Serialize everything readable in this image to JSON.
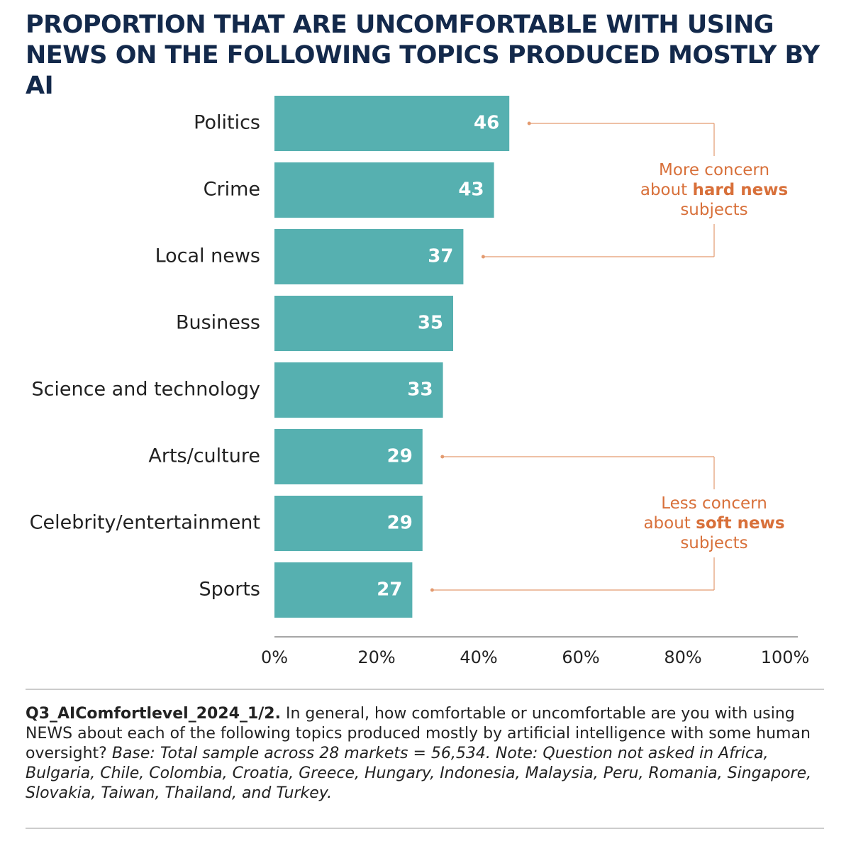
{
  "chart_data": {
    "type": "hbar",
    "title": "PROPORTION THAT ARE UNCOMFORTABLE WITH USING NEWS ON THE FOLLOWING TOPICS PRODUCED MOSTLY BY AI",
    "categories": [
      "Politics",
      "Crime",
      "Local news",
      "Business",
      "Science and technology",
      "Arts/culture",
      "Celebrity/entertainment",
      "Sports"
    ],
    "values": [
      46,
      43,
      37,
      35,
      33,
      29,
      29,
      27
    ],
    "color": "#56b0b0",
    "xlim": [
      0,
      100
    ],
    "xticks": [
      {
        "value": 0,
        "label": "0%"
      },
      {
        "value": 20,
        "label": "20%"
      },
      {
        "value": 40,
        "label": "40%"
      },
      {
        "value": 60,
        "label": "60%"
      },
      {
        "value": 80,
        "label": "80%"
      },
      {
        "value": 100,
        "label": "100%"
      }
    ],
    "annotations": [
      {
        "lines": [
          [
            {
              "text": "More concern",
              "bold": false
            }
          ],
          [
            {
              "text": "about ",
              "bold": false
            },
            {
              "text": "hard news",
              "bold": true
            }
          ],
          [
            {
              "text": "subjects",
              "bold": false
            }
          ]
        ]
      },
      {
        "lines": [
          [
            {
              "text": "Less concern",
              "bold": false
            }
          ],
          [
            {
              "text": "about ",
              "bold": false
            },
            {
              "text": "soft news",
              "bold": true
            }
          ],
          [
            {
              "text": "subjects",
              "bold": false
            }
          ]
        ]
      }
    ],
    "footnote": {
      "code": "Q3_AIComfortlevel_2024_1/2.",
      "question": " In general, how comfortable or uncomfortable are you with using NEWS about each of the following topics produced mostly by artificial intelligence with some human oversight?",
      "note": " Base: Total sample across 28 markets = 56,534. Note: Question not asked in Africa, Bulgaria, Chile, Colombia, Croatia, Greece, Hungary, Indonesia, Malaysia, Peru, Romania, Singapore, Slovakia, Taiwan, Thailand, and Turkey."
    }
  }
}
